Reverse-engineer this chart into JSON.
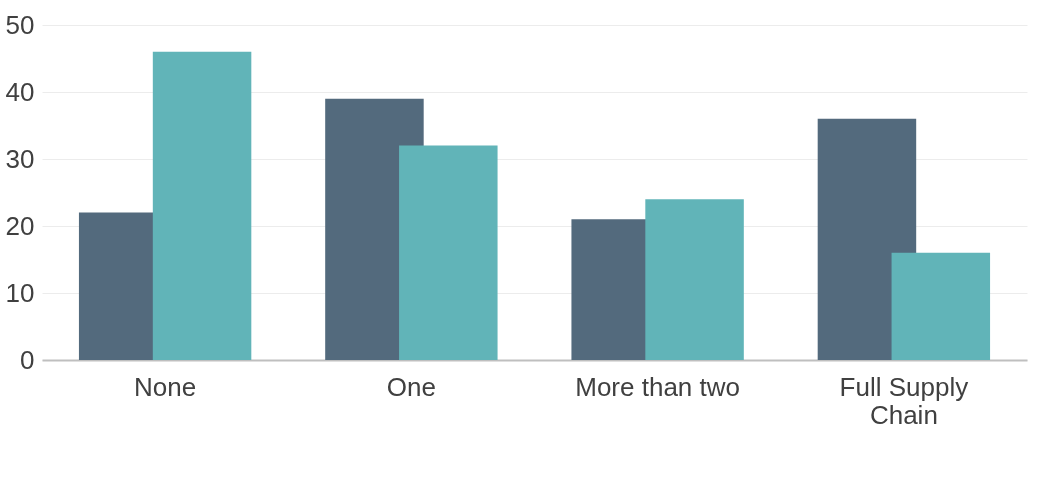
{
  "chart_data": {
    "type": "bar",
    "categories": [
      "None",
      "One",
      "More than two",
      "Full Supply Chain"
    ],
    "series": [
      {
        "color": "#536a7d",
        "values": [
          22,
          39,
          21,
          36
        ]
      },
      {
        "color": "#61b4b8",
        "values": [
          46,
          32,
          24,
          16
        ]
      }
    ],
    "ylim": [
      0,
      50
    ],
    "yticks": [
      0,
      10,
      20,
      30,
      40,
      50
    ],
    "grid": "y"
  }
}
